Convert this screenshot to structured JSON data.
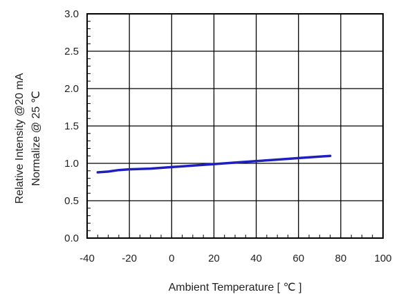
{
  "chart_data": {
    "type": "line",
    "title": "",
    "xlabel": "Ambient Temperature [ ℃ ]",
    "ylabel_line1": "Relative Intensity @20 mA",
    "ylabel_line2": "Normalize @ 25 ℃",
    "xlim": [
      -40,
      100
    ],
    "ylim": [
      0,
      3.0
    ],
    "x_ticks": [
      "-40",
      "-20",
      "0",
      "20",
      "40",
      "60",
      "80",
      "100"
    ],
    "y_ticks": [
      "0.0",
      "0.5",
      "1.0",
      "1.5",
      "2.0",
      "2.5",
      "3.0"
    ],
    "grid": true,
    "series_color": "#1f1fc0",
    "series": [
      {
        "x": [
          -35,
          -30,
          -25,
          -20,
          -10,
          0,
          10,
          20,
          30,
          40,
          50,
          60,
          70,
          75
        ],
        "y": [
          0.88,
          0.89,
          0.91,
          0.92,
          0.93,
          0.95,
          0.97,
          0.99,
          1.01,
          1.03,
          1.05,
          1.07,
          1.09,
          1.1
        ]
      }
    ]
  }
}
